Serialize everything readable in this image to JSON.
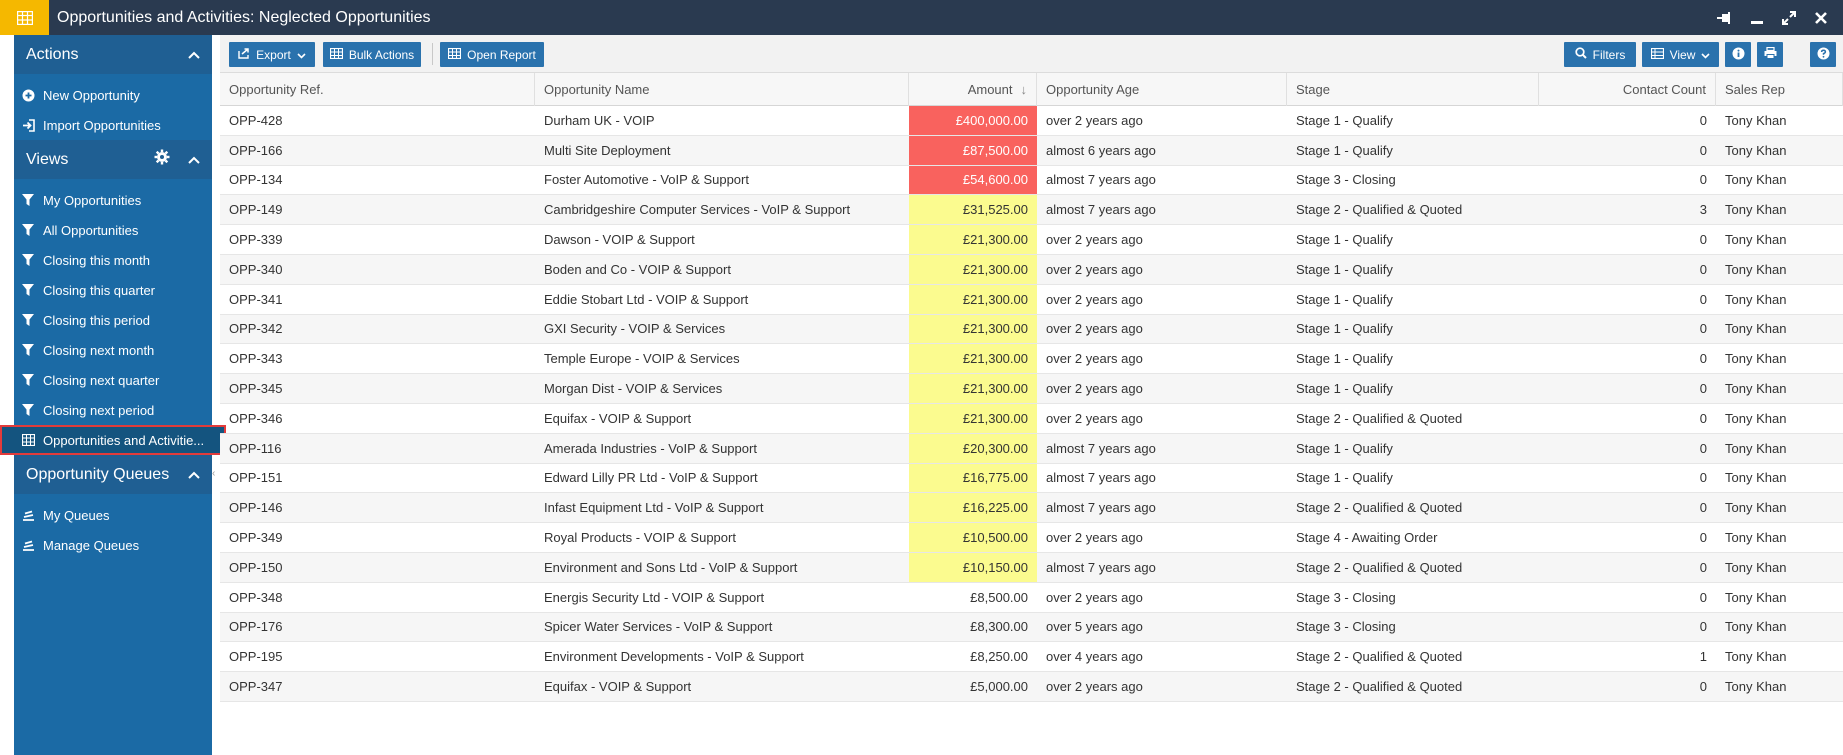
{
  "window": {
    "title": "Opportunities and Activities: Neglected Opportunities",
    "app_icon": "grid-icon",
    "controls": [
      "pin-icon",
      "minimize-icon",
      "restore-icon",
      "close-icon"
    ]
  },
  "sidebar": {
    "actions_header": "Actions",
    "actions": [
      {
        "label": "New Opportunity",
        "icon": "plus-circle-icon"
      },
      {
        "label": "Import Opportunities",
        "icon": "import-icon"
      }
    ],
    "views_header": "Views",
    "views": [
      {
        "label": "My Opportunities",
        "icon": "filter-icon"
      },
      {
        "label": "All Opportunities",
        "icon": "filter-icon"
      },
      {
        "label": "Closing this month",
        "icon": "filter-icon"
      },
      {
        "label": "Closing this quarter",
        "icon": "filter-icon"
      },
      {
        "label": "Closing this period",
        "icon": "filter-icon"
      },
      {
        "label": "Closing next month",
        "icon": "filter-icon"
      },
      {
        "label": "Closing next quarter",
        "icon": "filter-icon"
      },
      {
        "label": "Closing next period",
        "icon": "filter-icon"
      },
      {
        "label": "Opportunities and Activitie...",
        "icon": "table-icon",
        "active": true
      }
    ],
    "queues_header": "Opportunity Queues",
    "queues": [
      {
        "label": "My Queues",
        "icon": "queue-icon"
      },
      {
        "label": "Manage Queues",
        "icon": "queue-icon"
      }
    ]
  },
  "toolbar": {
    "export_label": "Export",
    "bulk_actions_label": "Bulk Actions",
    "open_report_label": "Open Report",
    "filters_label": "Filters",
    "view_label": "View"
  },
  "grid": {
    "columns": [
      "Opportunity Ref.",
      "Opportunity Name",
      "Amount",
      "Opportunity Age",
      "Stage",
      "Contact Count",
      "Sales Rep"
    ],
    "sort_indicator": "↓",
    "rows": [
      {
        "ref": "OPP-428",
        "name": "Durham UK - VOIP",
        "amount": "£400,000.00",
        "age": "over 2 years ago",
        "stage": "Stage 1 - Qualify",
        "count": "0",
        "rep": "Tony Khan",
        "highlight": "red"
      },
      {
        "ref": "OPP-166",
        "name": "Multi Site Deployment",
        "amount": "£87,500.00",
        "age": "almost 6 years ago",
        "stage": "Stage 1 - Qualify",
        "count": "0",
        "rep": "Tony Khan",
        "highlight": "red"
      },
      {
        "ref": "OPP-134",
        "name": "Foster Automotive - VoIP & Support",
        "amount": "£54,600.00",
        "age": "almost 7 years ago",
        "stage": "Stage 3 - Closing",
        "count": "0",
        "rep": "Tony Khan",
        "highlight": "red"
      },
      {
        "ref": "OPP-149",
        "name": "Cambridgeshire Computer Services - VoIP & Support",
        "amount": "£31,525.00",
        "age": "almost 7 years ago",
        "stage": "Stage 2 - Qualified & Quoted",
        "count": "3",
        "rep": "Tony Khan",
        "highlight": "yellow"
      },
      {
        "ref": "OPP-339",
        "name": "Dawson - VOIP & Support",
        "amount": "£21,300.00",
        "age": "over 2 years ago",
        "stage": "Stage 1 - Qualify",
        "count": "0",
        "rep": "Tony Khan",
        "highlight": "yellow"
      },
      {
        "ref": "OPP-340",
        "name": "Boden and Co - VOIP & Support",
        "amount": "£21,300.00",
        "age": "over 2 years ago",
        "stage": "Stage 1 - Qualify",
        "count": "0",
        "rep": "Tony Khan",
        "highlight": "yellow"
      },
      {
        "ref": "OPP-341",
        "name": "Eddie Stobart Ltd - VOIP & Support",
        "amount": "£21,300.00",
        "age": "over 2 years ago",
        "stage": "Stage 1 - Qualify",
        "count": "0",
        "rep": "Tony Khan",
        "highlight": "yellow"
      },
      {
        "ref": "OPP-342",
        "name": "GXI Security - VOIP & Services",
        "amount": "£21,300.00",
        "age": "over 2 years ago",
        "stage": "Stage 1 - Qualify",
        "count": "0",
        "rep": "Tony Khan",
        "highlight": "yellow"
      },
      {
        "ref": "OPP-343",
        "name": "Temple Europe - VOIP & Services",
        "amount": "£21,300.00",
        "age": "over 2 years ago",
        "stage": "Stage 1 - Qualify",
        "count": "0",
        "rep": "Tony Khan",
        "highlight": "yellow"
      },
      {
        "ref": "OPP-345",
        "name": "Morgan Dist - VOIP & Services",
        "amount": "£21,300.00",
        "age": "over 2 years ago",
        "stage": "Stage 1 - Qualify",
        "count": "0",
        "rep": "Tony Khan",
        "highlight": "yellow"
      },
      {
        "ref": "OPP-346",
        "name": "Equifax - VOIP & Support",
        "amount": "£21,300.00",
        "age": "over 2 years ago",
        "stage": "Stage 2 - Qualified & Quoted",
        "count": "0",
        "rep": "Tony Khan",
        "highlight": "yellow"
      },
      {
        "ref": "OPP-116",
        "name": "Amerada Industries - VoIP & Support",
        "amount": "£20,300.00",
        "age": "almost 7 years ago",
        "stage": "Stage 1 - Qualify",
        "count": "0",
        "rep": "Tony Khan",
        "highlight": "yellow"
      },
      {
        "ref": "OPP-151",
        "name": "Edward Lilly PR Ltd - VoIP & Support",
        "amount": "£16,775.00",
        "age": "almost 7 years ago",
        "stage": "Stage 1 - Qualify",
        "count": "0",
        "rep": "Tony Khan",
        "highlight": "yellow"
      },
      {
        "ref": "OPP-146",
        "name": "Infast Equipment Ltd - VoIP & Support",
        "amount": "£16,225.00",
        "age": "almost 7 years ago",
        "stage": "Stage 2 - Qualified & Quoted",
        "count": "0",
        "rep": "Tony Khan",
        "highlight": "yellow"
      },
      {
        "ref": "OPP-349",
        "name": "Royal Products - VOIP & Support",
        "amount": "£10,500.00",
        "age": "over 2 years ago",
        "stage": "Stage 4 - Awaiting Order",
        "count": "0",
        "rep": "Tony Khan",
        "highlight": "yellow"
      },
      {
        "ref": "OPP-150",
        "name": "Environment and Sons Ltd - VoIP & Support",
        "amount": "£10,150.00",
        "age": "almost 7 years ago",
        "stage": "Stage 2 - Qualified & Quoted",
        "count": "0",
        "rep": "Tony Khan",
        "highlight": "yellow"
      },
      {
        "ref": "OPP-348",
        "name": "Energis Security Ltd - VOIP & Support",
        "amount": "£8,500.00",
        "age": "over 2 years ago",
        "stage": "Stage 3 - Closing",
        "count": "0",
        "rep": "Tony Khan",
        "highlight": "none"
      },
      {
        "ref": "OPP-176",
        "name": "Spicer Water Services - VoIP & Support",
        "amount": "£8,300.00",
        "age": "over 5 years ago",
        "stage": "Stage 3 - Closing",
        "count": "0",
        "rep": "Tony Khan",
        "highlight": "none"
      },
      {
        "ref": "OPP-195",
        "name": "Environment Developments - VoIP & Support",
        "amount": "£8,250.00",
        "age": "over 4 years ago",
        "stage": "Stage 2 - Qualified & Quoted",
        "count": "1",
        "rep": "Tony Khan",
        "highlight": "none"
      },
      {
        "ref": "OPP-347",
        "name": "Equifax - VOIP & Support",
        "amount": "£5,000.00",
        "age": "over 2 years ago",
        "stage": "Stage 2 - Qualified & Quoted",
        "count": "0",
        "rep": "Tony Khan",
        "highlight": "none"
      }
    ]
  },
  "colors": {
    "titlebar": "#2a3a50",
    "app_icon_bg": "#f5b800",
    "sidebar": "#1b6aa5",
    "sidebar_header": "#1f5f93",
    "button": "#2a72ad",
    "amount_red": "#f9625e",
    "amount_yellow": "#fbfb8f",
    "active_outline": "#e23b3b"
  }
}
